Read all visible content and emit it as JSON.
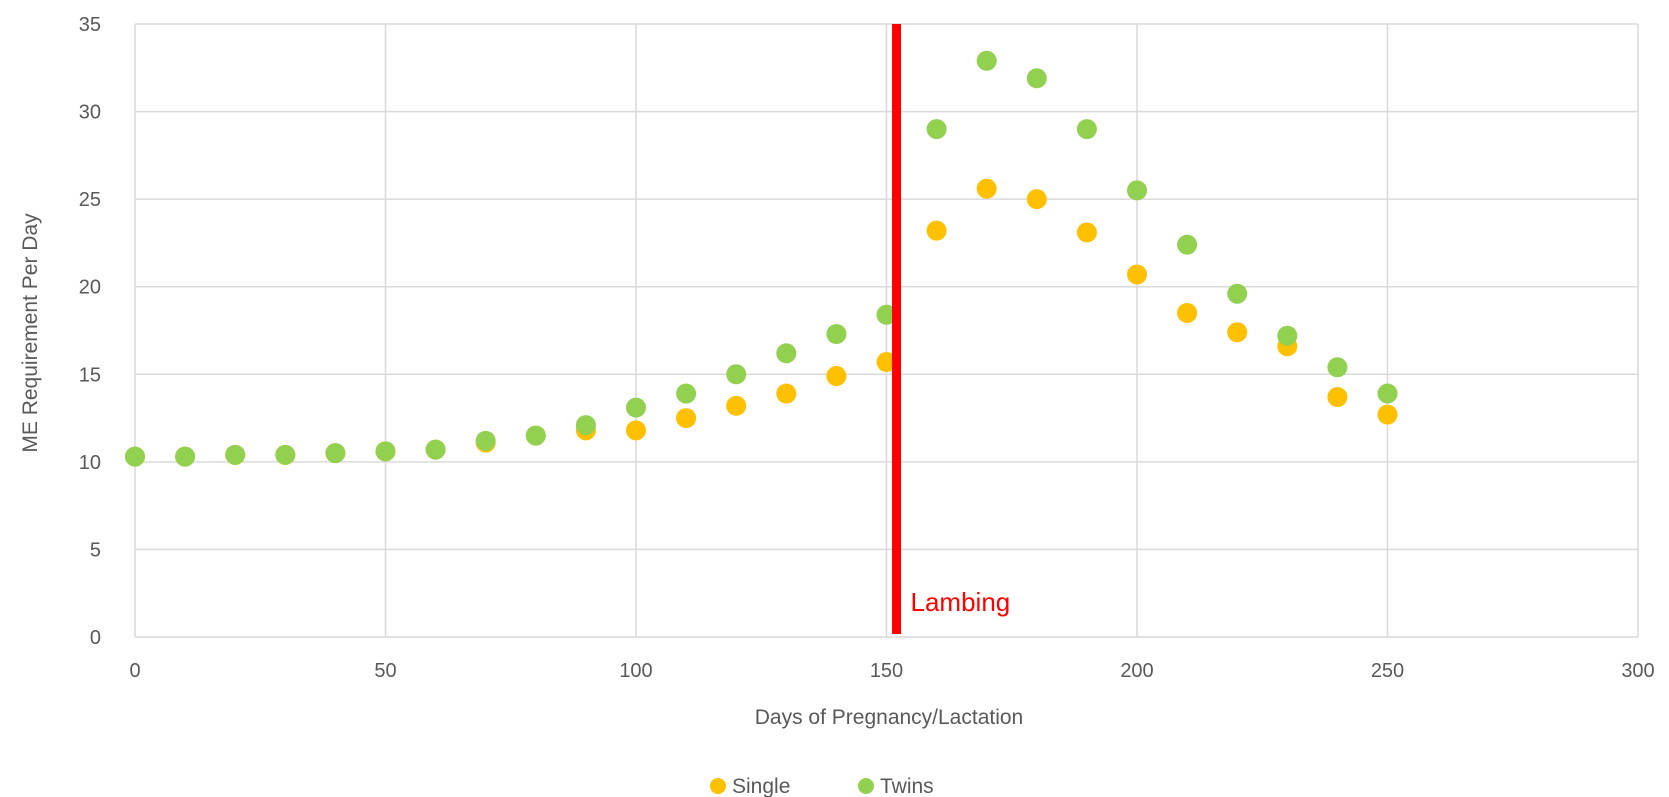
{
  "chart_data": {
    "type": "scatter",
    "title": "",
    "xlabel": "Days of Pregnancy/Lactation",
    "ylabel": "ME Requirement Per Day",
    "xlim": [
      0,
      300
    ],
    "ylim": [
      0,
      35
    ],
    "xticks": [
      0,
      50,
      100,
      150,
      200,
      250,
      300
    ],
    "yticks": [
      0,
      5,
      10,
      15,
      20,
      25,
      30,
      35
    ],
    "grid": true,
    "legend_position": "bottom",
    "series": [
      {
        "name": "Single",
        "color": "#ffc000",
        "points": [
          [
            0,
            10.3
          ],
          [
            10,
            10.3
          ],
          [
            20,
            10.4
          ],
          [
            30,
            10.4
          ],
          [
            40,
            10.5
          ],
          [
            50,
            10.6
          ],
          [
            60,
            10.7
          ],
          [
            70,
            11.1
          ],
          [
            80,
            11.5
          ],
          [
            90,
            11.8
          ],
          [
            100,
            11.8
          ],
          [
            110,
            12.5
          ],
          [
            120,
            13.2
          ],
          [
            130,
            13.9
          ],
          [
            140,
            14.9
          ],
          [
            150,
            15.7
          ],
          [
            160,
            23.2
          ],
          [
            170,
            25.6
          ],
          [
            180,
            25.0
          ],
          [
            190,
            23.1
          ],
          [
            200,
            20.7
          ],
          [
            210,
            18.5
          ],
          [
            220,
            17.4
          ],
          [
            230,
            16.6
          ],
          [
            240,
            13.7
          ],
          [
            250,
            12.7
          ]
        ]
      },
      {
        "name": "Twins",
        "color": "#92d050",
        "points": [
          [
            0,
            10.3
          ],
          [
            10,
            10.3
          ],
          [
            20,
            10.4
          ],
          [
            30,
            10.4
          ],
          [
            40,
            10.5
          ],
          [
            50,
            10.6
          ],
          [
            60,
            10.7
          ],
          [
            70,
            11.2
          ],
          [
            80,
            11.5
          ],
          [
            90,
            12.1
          ],
          [
            100,
            13.1
          ],
          [
            110,
            13.9
          ],
          [
            120,
            15.0
          ],
          [
            130,
            16.2
          ],
          [
            140,
            17.3
          ],
          [
            150,
            18.4
          ],
          [
            160,
            29.0
          ],
          [
            170,
            32.9
          ],
          [
            180,
            31.9
          ],
          [
            190,
            29.0
          ],
          [
            200,
            25.5
          ],
          [
            210,
            22.4
          ],
          [
            220,
            19.6
          ],
          [
            230,
            17.2
          ],
          [
            240,
            15.4
          ],
          [
            250,
            13.9
          ]
        ]
      }
    ],
    "annotations": [
      {
        "type": "vline",
        "x": 152,
        "color": "#ff0000",
        "label": "Lambing"
      }
    ]
  }
}
